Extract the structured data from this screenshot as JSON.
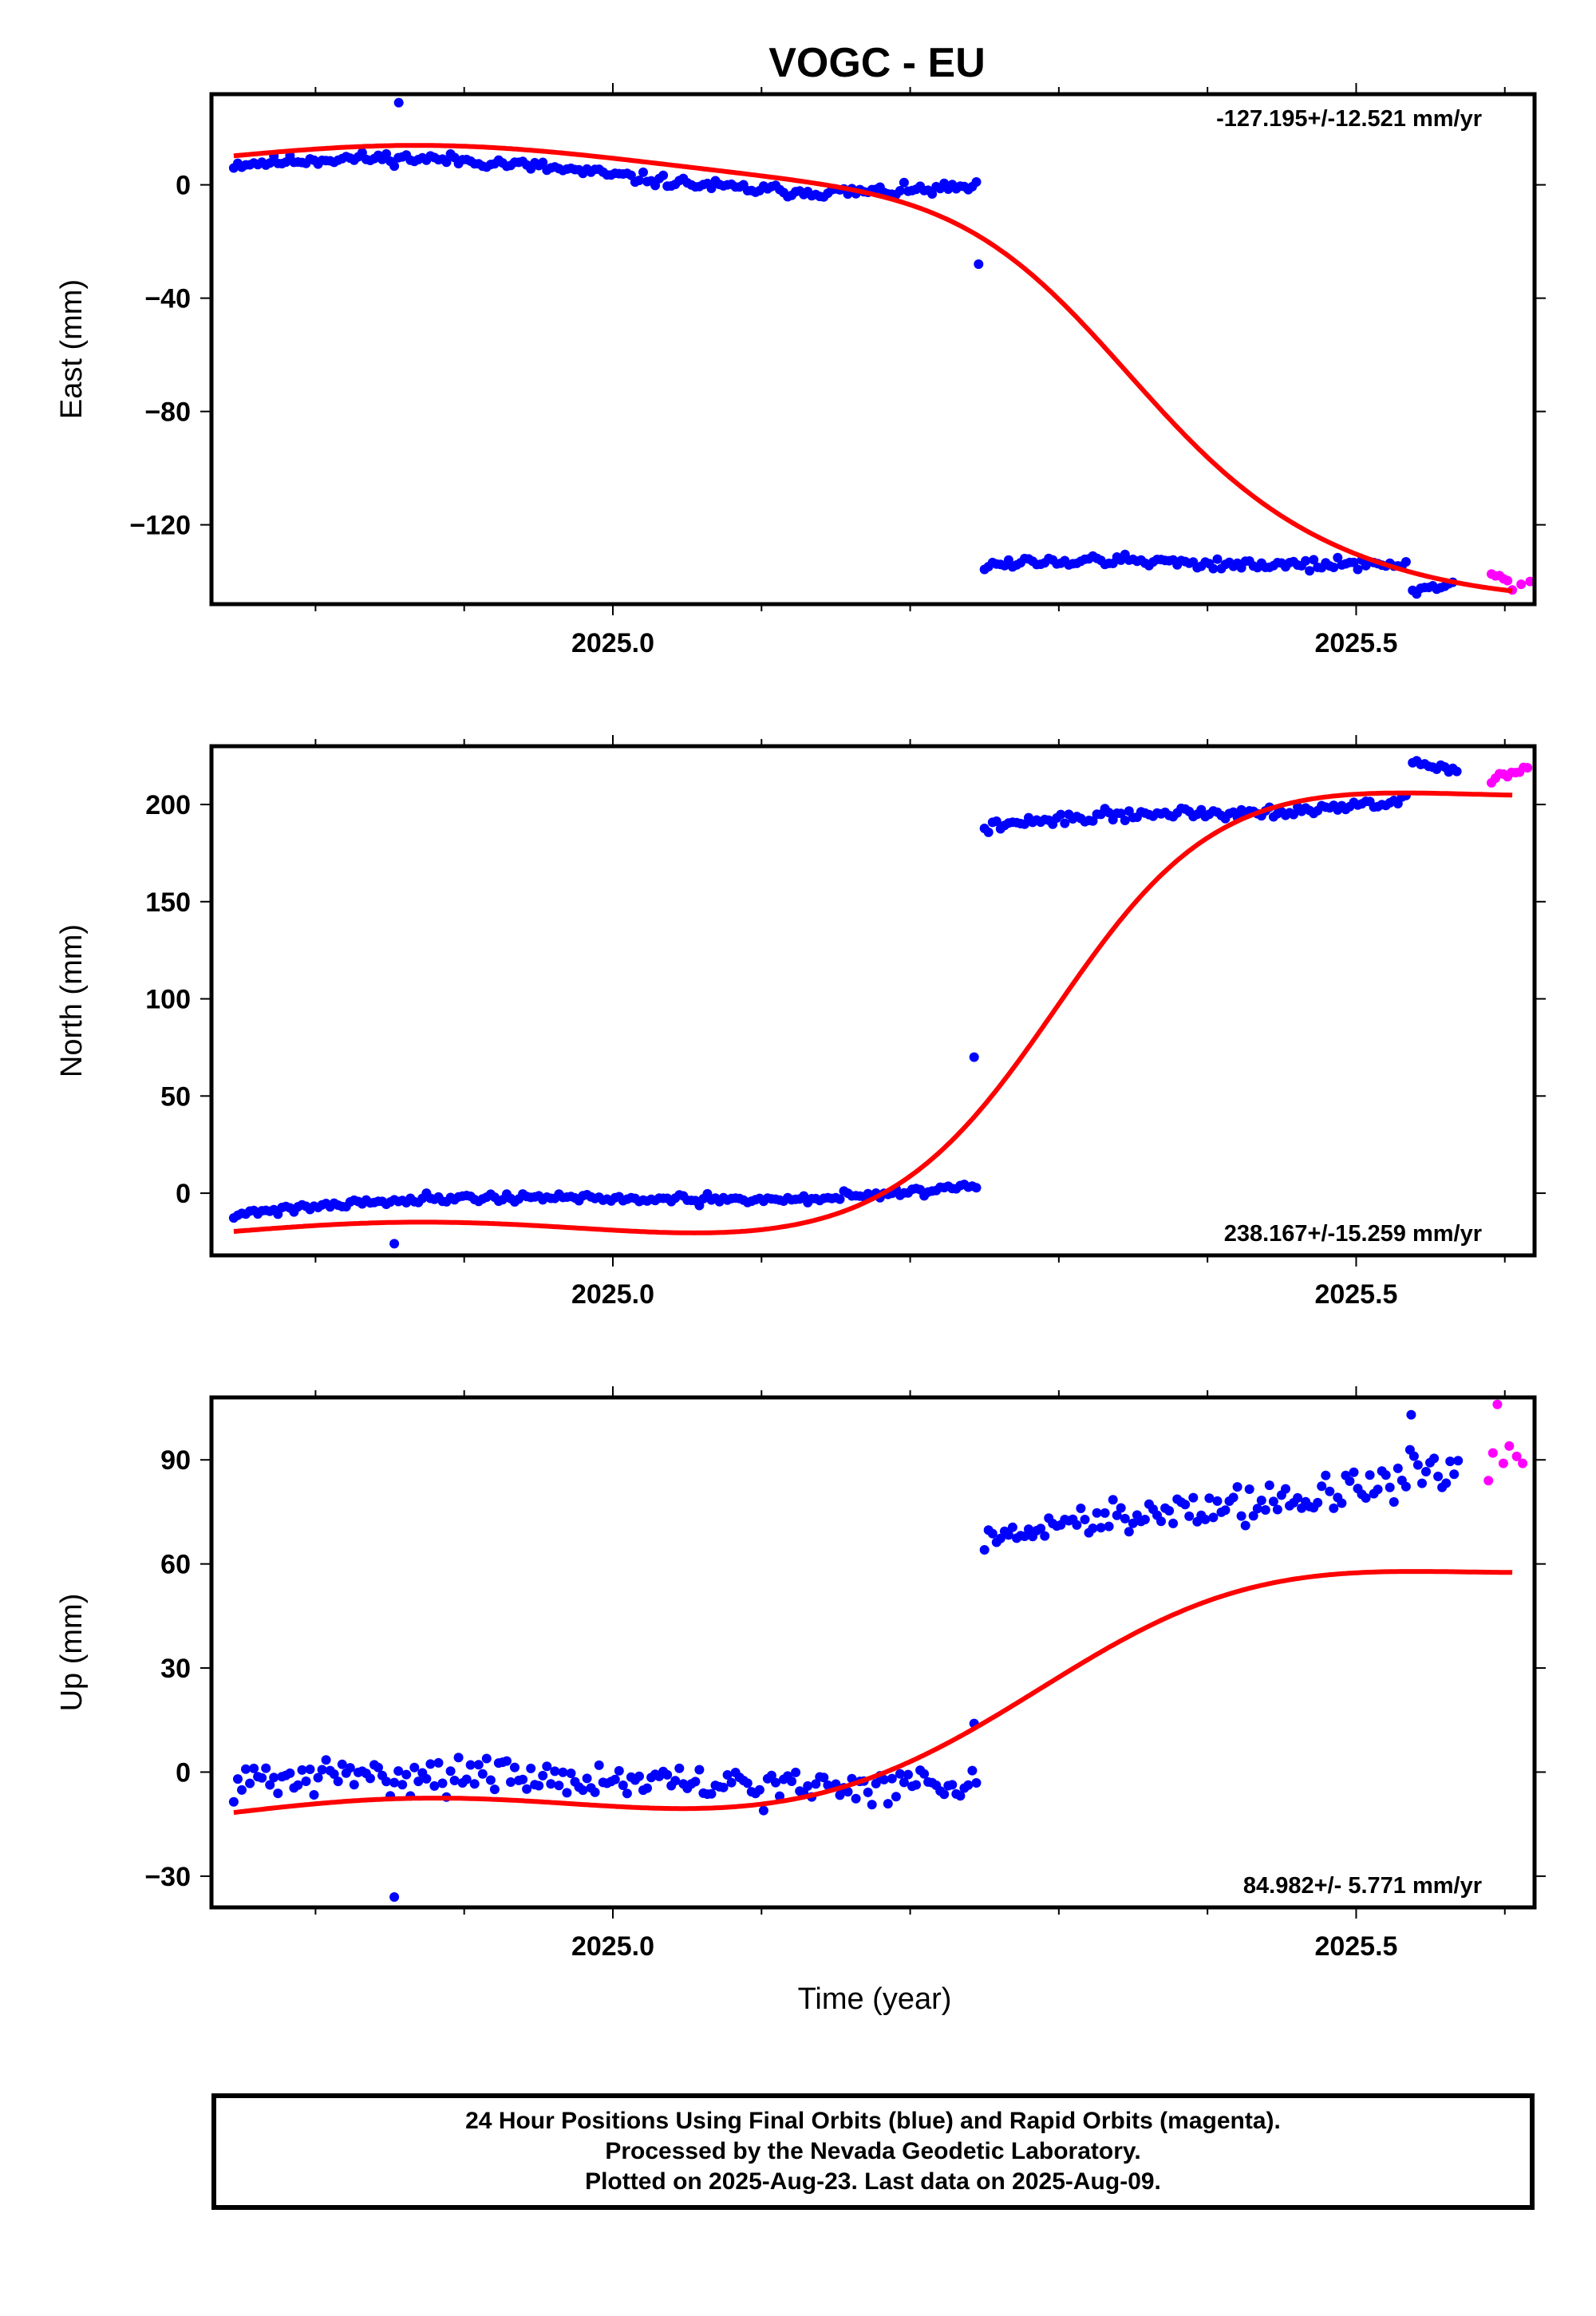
{
  "colors": {
    "final_orbits": "#0000ff",
    "rapid_orbits": "#ff00ff",
    "model": "#ff0000",
    "axis": "#000000"
  },
  "footer": {
    "line1": "24 Hour Positions Using Final Orbits (blue) and Rapid Orbits (magenta).",
    "line2": "Processed by the Nevada Geodetic Laboratory.",
    "line3": "Plotted on 2025-Aug-23. Last data on 2025-Aug-09."
  },
  "chart_data": [
    {
      "type": "scatter",
      "title": "VOGC - EU",
      "ylabel": "East (mm)",
      "xlabel": "",
      "xlim": [
        2024.73,
        2025.62
      ],
      "ylim": [
        -148,
        32
      ],
      "xticks": [
        2025.0,
        2025.5
      ],
      "xtick_labels": [
        "2025.0",
        "2025.5"
      ],
      "yticks": [
        0,
        -40,
        -80,
        -120
      ],
      "ytick_labels": [
        "0",
        "−40",
        "−80",
        "−120"
      ],
      "rate_annotation": "-127.195+/-12.521 mm/yr",
      "annotation_position": "top-right",
      "series": [
        {
          "name": "Final Orbits",
          "color": "#0000ff",
          "segments": [
            {
              "x0": 2024.745,
              "x1": 2025.245,
              "step": 0.0027,
              "y0": 7,
              "y1": 0,
              "wave": [
                4,
                0.52,
                2024.74
              ],
              "noise": 1.8,
              "seed": 11
            },
            {
              "x0": 2025.25,
              "x1": 2025.535,
              "step": 0.0027,
              "y0": -134,
              "y1": -133,
              "wave": [
                1,
                0.3,
                2025.25
              ],
              "noise": 1.8,
              "seed": 12
            },
            {
              "x0": 2025.538,
              "x1": 2025.565,
              "step": 0.0027,
              "y0": -143,
              "y1": -141,
              "wave": [
                0,
                1,
                0
              ],
              "noise": 1.5,
              "seed": 13
            }
          ],
          "points": [
            [
              2024.856,
              29
            ],
            [
              2025.246,
              -28
            ]
          ]
        },
        {
          "name": "Rapid Orbits",
          "color": "#ff00ff",
          "segments": [
            {
              "x0": 2025.591,
              "x1": 2025.603,
              "step": 0.0027,
              "y0": -137,
              "y1": -139,
              "wave": [
                0,
                1,
                0
              ],
              "noise": 1.0,
              "seed": 14
            }
          ],
          "points": [
            [
              2025.605,
              -143
            ],
            [
              2025.611,
              -141
            ],
            [
              2025.617,
              -140
            ]
          ]
        },
        {
          "name": "Model",
          "color": "#ff0000",
          "curve": {
            "x0": 2024.745,
            "x1": 2025.605,
            "base_start": 10,
            "base_end": -142,
            "t_mid": 2025.34,
            "width": 0.062,
            "wave_amp": 4,
            "wave_period": 0.52,
            "wave_phase": 2024.74
          }
        }
      ]
    },
    {
      "type": "scatter",
      "title": "",
      "ylabel": "North (mm)",
      "xlabel": "",
      "xlim": [
        2024.73,
        2025.62
      ],
      "ylim": [
        -32,
        230
      ],
      "xticks": [
        2025.0,
        2025.5
      ],
      "xtick_labels": [
        "2025.0",
        "2025.5"
      ],
      "yticks": [
        0,
        50,
        100,
        150,
        200
      ],
      "ytick_labels": [
        "0",
        "50",
        "100",
        "150",
        "200"
      ],
      "rate_annotation": "238.167+/-15.259 mm/yr",
      "annotation_position": "bottom-right",
      "series": [
        {
          "name": "Final Orbits",
          "color": "#0000ff",
          "segments": [
            {
              "x0": 2024.745,
              "x1": 2025.245,
              "step": 0.0027,
              "y0": -11,
              "y1": 5,
              "wave": [
                4,
                0.52,
                2024.74
              ],
              "noise": 2.0,
              "seed": 21
            },
            {
              "x0": 2025.25,
              "x1": 2025.535,
              "step": 0.0027,
              "y0": 188,
              "y1": 203,
              "wave": [
                2,
                0.3,
                2025.25
              ],
              "noise": 2.5,
              "seed": 22
            },
            {
              "x0": 2025.538,
              "x1": 2025.57,
              "step": 0.0027,
              "y0": 222,
              "y1": 217,
              "wave": [
                0,
                1,
                0
              ],
              "noise": 1.5,
              "seed": 23
            }
          ],
          "points": [
            [
              2024.853,
              -26
            ],
            [
              2025.243,
              70
            ]
          ]
        },
        {
          "name": "Rapid Orbits",
          "color": "#ff00ff",
          "segments": [
            {
              "x0": 2025.591,
              "x1": 2025.617,
              "step": 0.0027,
              "y0": 213,
              "y1": 218,
              "wave": [
                0,
                1,
                0
              ],
              "noise": 3.0,
              "seed": 24
            }
          ],
          "points": []
        },
        {
          "name": "Model",
          "color": "#ff0000",
          "curve": {
            "x0": 2024.745,
            "x1": 2025.605,
            "base_start": -20,
            "base_end": 210,
            "t_mid": 2025.3,
            "width": 0.055,
            "wave_amp": 5,
            "wave_period": 0.52,
            "wave_phase": 2024.74
          }
        }
      ]
    },
    {
      "type": "scatter",
      "title": "",
      "ylabel": "Up (mm)",
      "xlabel": "Time (year)",
      "xlim": [
        2024.73,
        2025.62
      ],
      "ylim": [
        -39,
        108
      ],
      "xticks": [
        2025.0,
        2025.5
      ],
      "xtick_labels": [
        "2025.0",
        "2025.5"
      ],
      "yticks": [
        -30,
        0,
        30,
        60,
        90
      ],
      "ytick_labels": [
        "−30",
        "0",
        "30",
        "60",
        "90"
      ],
      "rate_annotation": "84.982+/- 5.771 mm/yr",
      "annotation_position": "bottom-right",
      "series": [
        {
          "name": "Final Orbits",
          "color": "#0000ff",
          "segments": [
            {
              "x0": 2024.745,
              "x1": 2025.245,
              "step": 0.0027,
              "y0": -3,
              "y1": -2,
              "wave": [
                2,
                0.52,
                2024.74
              ],
              "noise": 4.5,
              "seed": 31
            },
            {
              "x0": 2025.25,
              "x1": 2025.57,
              "step": 0.0027,
              "y0": 66,
              "y1": 88,
              "wave": [
                2,
                0.3,
                2025.25
              ],
              "noise": 5.0,
              "seed": 32
            }
          ],
          "points": [
            [
              2024.853,
              -36
            ],
            [
              2025.243,
              14
            ],
            [
              2025.537,
              103
            ]
          ]
        },
        {
          "name": "Rapid Orbits",
          "color": "#ff00ff",
          "segments": [],
          "points": [
            [
              2025.589,
              84
            ],
            [
              2025.592,
              92
            ],
            [
              2025.595,
              106
            ],
            [
              2025.599,
              89
            ],
            [
              2025.603,
              94
            ],
            [
              2025.608,
              91
            ],
            [
              2025.612,
              89
            ]
          ]
        },
        {
          "name": "Model",
          "color": "#ff0000",
          "curve": {
            "x0": 2024.745,
            "x1": 2025.605,
            "base_start": -12,
            "base_end": 63,
            "t_mid": 2025.3,
            "width": 0.085,
            "wave_amp": 4,
            "wave_period": 0.52,
            "wave_phase": 2024.74
          }
        }
      ]
    }
  ]
}
